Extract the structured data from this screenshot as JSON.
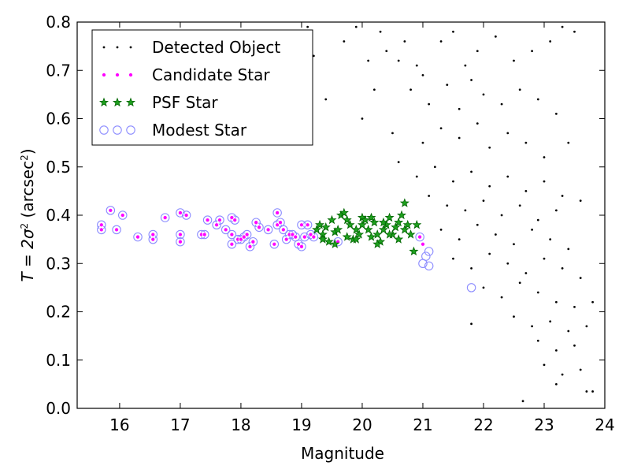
{
  "chart_data": {
    "type": "scatter",
    "xlabel": "Magnitude",
    "ylabel_prefix": "T = 2σ",
    "ylabel_suffix": " (arcsec",
    "ylabel_tail": ")",
    "ylabel_sup": "2",
    "xlim": [
      15.3,
      24.0
    ],
    "ylim": [
      0.0,
      0.8
    ],
    "xticks": [
      16,
      17,
      18,
      19,
      20,
      21,
      22,
      23,
      24
    ],
    "yticks": [
      0.0,
      0.1,
      0.2,
      0.3,
      0.4,
      0.5,
      0.6,
      0.7,
      0.8
    ],
    "grid": false,
    "legend_position": "top-left",
    "colors": {
      "detected": "#000000",
      "candidate_fill": "#ff00ff",
      "psf_fill": "#1ea01e",
      "psf_edge": "#006400",
      "modest_edge": "#8c8cff"
    },
    "series": [
      {
        "name": "Detected Object",
        "marker": "dot",
        "points": [
          [
            20.3,
            0.78
          ],
          [
            20.4,
            0.74
          ],
          [
            20.6,
            0.72
          ],
          [
            20.9,
            0.71
          ],
          [
            21.0,
            0.69
          ],
          [
            21.3,
            0.76
          ],
          [
            21.5,
            0.78
          ],
          [
            21.7,
            0.71
          ],
          [
            21.9,
            0.74
          ],
          [
            22.2,
            0.77
          ],
          [
            22.5,
            0.72
          ],
          [
            22.8,
            0.74
          ],
          [
            23.1,
            0.76
          ],
          [
            23.3,
            0.79
          ],
          [
            23.5,
            0.78
          ],
          [
            20.8,
            0.66
          ],
          [
            21.1,
            0.63
          ],
          [
            21.4,
            0.67
          ],
          [
            21.6,
            0.62
          ],
          [
            21.8,
            0.68
          ],
          [
            22.0,
            0.65
          ],
          [
            22.3,
            0.63
          ],
          [
            22.6,
            0.66
          ],
          [
            22.9,
            0.64
          ],
          [
            23.2,
            0.61
          ],
          [
            20.0,
            0.6
          ],
          [
            20.5,
            0.57
          ],
          [
            21.0,
            0.55
          ],
          [
            21.3,
            0.58
          ],
          [
            21.6,
            0.56
          ],
          [
            21.9,
            0.59
          ],
          [
            22.1,
            0.54
          ],
          [
            22.4,
            0.57
          ],
          [
            22.7,
            0.55
          ],
          [
            23.0,
            0.52
          ],
          [
            23.4,
            0.55
          ],
          [
            20.6,
            0.51
          ],
          [
            20.9,
            0.48
          ],
          [
            21.2,
            0.5
          ],
          [
            21.5,
            0.47
          ],
          [
            21.8,
            0.49
          ],
          [
            22.1,
            0.46
          ],
          [
            22.4,
            0.48
          ],
          [
            22.7,
            0.45
          ],
          [
            23.0,
            0.47
          ],
          [
            23.3,
            0.44
          ],
          [
            23.6,
            0.43
          ],
          [
            21.1,
            0.44
          ],
          [
            21.4,
            0.42
          ],
          [
            21.7,
            0.41
          ],
          [
            22.0,
            0.43
          ],
          [
            22.3,
            0.4
          ],
          [
            22.6,
            0.42
          ],
          [
            22.9,
            0.39
          ],
          [
            23.2,
            0.41
          ],
          [
            21.3,
            0.37
          ],
          [
            21.6,
            0.35
          ],
          [
            21.9,
            0.38
          ],
          [
            22.2,
            0.36
          ],
          [
            22.5,
            0.34
          ],
          [
            22.8,
            0.37
          ],
          [
            23.1,
            0.35
          ],
          [
            23.4,
            0.33
          ],
          [
            21.5,
            0.31
          ],
          [
            21.8,
            0.29
          ],
          [
            22.1,
            0.32
          ],
          [
            22.4,
            0.3
          ],
          [
            22.7,
            0.28
          ],
          [
            23.0,
            0.31
          ],
          [
            23.3,
            0.29
          ],
          [
            23.6,
            0.27
          ],
          [
            22.0,
            0.25
          ],
          [
            22.3,
            0.23
          ],
          [
            22.6,
            0.26
          ],
          [
            22.9,
            0.24
          ],
          [
            23.2,
            0.22
          ],
          [
            23.5,
            0.21
          ],
          [
            23.8,
            0.22
          ],
          [
            22.5,
            0.19
          ],
          [
            22.8,
            0.17
          ],
          [
            23.1,
            0.18
          ],
          [
            23.4,
            0.16
          ],
          [
            23.7,
            0.17
          ],
          [
            22.9,
            0.14
          ],
          [
            23.2,
            0.12
          ],
          [
            23.5,
            0.13
          ],
          [
            23.0,
            0.09
          ],
          [
            23.3,
            0.07
          ],
          [
            23.6,
            0.08
          ],
          [
            23.2,
            0.05
          ],
          [
            23.7,
            0.035
          ],
          [
            23.8,
            0.035
          ],
          [
            22.65,
            0.015
          ],
          [
            21.8,
            0.175
          ],
          [
            19.7,
            0.76
          ],
          [
            19.2,
            0.73
          ],
          [
            19.4,
            0.64
          ],
          [
            19.1,
            0.79
          ],
          [
            19.9,
            0.79
          ],
          [
            20.1,
            0.72
          ],
          [
            20.2,
            0.66
          ],
          [
            20.7,
            0.76
          ]
        ]
      },
      {
        "name": "Candidate Star",
        "marker": "ring-magenta",
        "points": [
          [
            15.7,
            0.38
          ],
          [
            15.7,
            0.37
          ],
          [
            15.85,
            0.41
          ],
          [
            15.95,
            0.37
          ],
          [
            16.05,
            0.4
          ],
          [
            16.3,
            0.355
          ],
          [
            16.55,
            0.36
          ],
          [
            16.55,
            0.35
          ],
          [
            16.75,
            0.395
          ],
          [
            17.0,
            0.405
          ],
          [
            17.0,
            0.36
          ],
          [
            17.0,
            0.345
          ],
          [
            17.1,
            0.4
          ],
          [
            17.35,
            0.36
          ],
          [
            17.4,
            0.36
          ],
          [
            17.45,
            0.39
          ],
          [
            17.6,
            0.38
          ],
          [
            17.65,
            0.39
          ],
          [
            17.75,
            0.37
          ],
          [
            17.85,
            0.395
          ],
          [
            17.9,
            0.39
          ],
          [
            17.85,
            0.36
          ],
          [
            17.85,
            0.34
          ],
          [
            17.95,
            0.35
          ],
          [
            18.0,
            0.35
          ],
          [
            18.05,
            0.355
          ],
          [
            18.1,
            0.36
          ],
          [
            18.15,
            0.335
          ],
          [
            18.2,
            0.345
          ],
          [
            18.25,
            0.385
          ],
          [
            18.3,
            0.375
          ],
          [
            18.45,
            0.37
          ],
          [
            18.55,
            0.34
          ],
          [
            18.6,
            0.38
          ],
          [
            18.65,
            0.385
          ],
          [
            18.6,
            0.405
          ],
          [
            18.7,
            0.37
          ],
          [
            18.75,
            0.35
          ],
          [
            18.8,
            0.36
          ],
          [
            18.85,
            0.36
          ],
          [
            18.9,
            0.355
          ],
          [
            18.95,
            0.34
          ],
          [
            19.0,
            0.335
          ],
          [
            19.0,
            0.38
          ],
          [
            19.05,
            0.355
          ],
          [
            19.1,
            0.38
          ],
          [
            19.15,
            0.36
          ],
          [
            19.2,
            0.355
          ],
          [
            19.55,
            0.34
          ],
          [
            19.6,
            0.345
          ],
          [
            20.95,
            0.355
          ],
          [
            21.0,
            0.34
          ]
        ]
      },
      {
        "name": "PSF Star",
        "marker": "star-green",
        "points": [
          [
            19.25,
            0.37
          ],
          [
            19.3,
            0.38
          ],
          [
            19.35,
            0.36
          ],
          [
            19.4,
            0.375
          ],
          [
            19.45,
            0.345
          ],
          [
            19.5,
            0.39
          ],
          [
            19.55,
            0.365
          ],
          [
            19.6,
            0.37
          ],
          [
            19.65,
            0.4
          ],
          [
            19.7,
            0.405
          ],
          [
            19.75,
            0.355
          ],
          [
            19.8,
            0.38
          ],
          [
            19.85,
            0.35
          ],
          [
            19.9,
            0.37
          ],
          [
            19.95,
            0.36
          ],
          [
            20.0,
            0.395
          ],
          [
            20.0,
            0.38
          ],
          [
            20.05,
            0.39
          ],
          [
            20.1,
            0.37
          ],
          [
            20.15,
            0.355
          ],
          [
            20.2,
            0.385
          ],
          [
            20.25,
            0.36
          ],
          [
            20.3,
            0.345
          ],
          [
            20.35,
            0.37
          ],
          [
            20.4,
            0.38
          ],
          [
            20.45,
            0.395
          ],
          [
            20.5,
            0.36
          ],
          [
            20.55,
            0.375
          ],
          [
            20.6,
            0.385
          ],
          [
            20.65,
            0.4
          ],
          [
            20.7,
            0.37
          ],
          [
            20.7,
            0.425
          ],
          [
            20.75,
            0.38
          ],
          [
            20.8,
            0.36
          ],
          [
            20.85,
            0.325
          ],
          [
            20.9,
            0.38
          ],
          [
            19.35,
            0.35
          ],
          [
            19.55,
            0.34
          ],
          [
            19.75,
            0.39
          ],
          [
            19.9,
            0.35
          ],
          [
            20.15,
            0.395
          ],
          [
            20.25,
            0.34
          ],
          [
            20.45,
            0.36
          ],
          [
            20.6,
            0.35
          ],
          [
            20.35,
            0.385
          ]
        ]
      },
      {
        "name": "Modest Star",
        "marker": "ring-lavender",
        "points": [
          [
            15.7,
            0.38
          ],
          [
            15.7,
            0.37
          ],
          [
            15.85,
            0.41
          ],
          [
            15.95,
            0.37
          ],
          [
            16.05,
            0.4
          ],
          [
            16.3,
            0.355
          ],
          [
            16.55,
            0.36
          ],
          [
            16.55,
            0.35
          ],
          [
            16.75,
            0.395
          ],
          [
            17.0,
            0.405
          ],
          [
            17.0,
            0.36
          ],
          [
            17.0,
            0.345
          ],
          [
            17.1,
            0.4
          ],
          [
            17.35,
            0.36
          ],
          [
            17.4,
            0.36
          ],
          [
            17.45,
            0.39
          ],
          [
            17.6,
            0.38
          ],
          [
            17.65,
            0.39
          ],
          [
            17.75,
            0.37
          ],
          [
            17.85,
            0.395
          ],
          [
            17.9,
            0.39
          ],
          [
            17.85,
            0.36
          ],
          [
            17.85,
            0.34
          ],
          [
            17.95,
            0.35
          ],
          [
            18.0,
            0.35
          ],
          [
            18.05,
            0.355
          ],
          [
            18.1,
            0.36
          ],
          [
            18.15,
            0.335
          ],
          [
            18.2,
            0.345
          ],
          [
            18.25,
            0.385
          ],
          [
            18.3,
            0.375
          ],
          [
            18.45,
            0.37
          ],
          [
            18.55,
            0.34
          ],
          [
            18.6,
            0.38
          ],
          [
            18.65,
            0.385
          ],
          [
            18.6,
            0.405
          ],
          [
            18.7,
            0.37
          ],
          [
            18.75,
            0.35
          ],
          [
            18.8,
            0.36
          ],
          [
            18.85,
            0.36
          ],
          [
            18.9,
            0.355
          ],
          [
            18.95,
            0.34
          ],
          [
            19.0,
            0.335
          ],
          [
            19.0,
            0.38
          ],
          [
            19.05,
            0.355
          ],
          [
            19.1,
            0.38
          ],
          [
            19.15,
            0.36
          ],
          [
            19.2,
            0.355
          ],
          [
            19.6,
            0.345
          ],
          [
            20.95,
            0.355
          ],
          [
            21.05,
            0.315
          ],
          [
            21.1,
            0.325
          ],
          [
            21.0,
            0.3
          ],
          [
            21.1,
            0.295
          ],
          [
            21.8,
            0.25
          ]
        ]
      }
    ]
  }
}
